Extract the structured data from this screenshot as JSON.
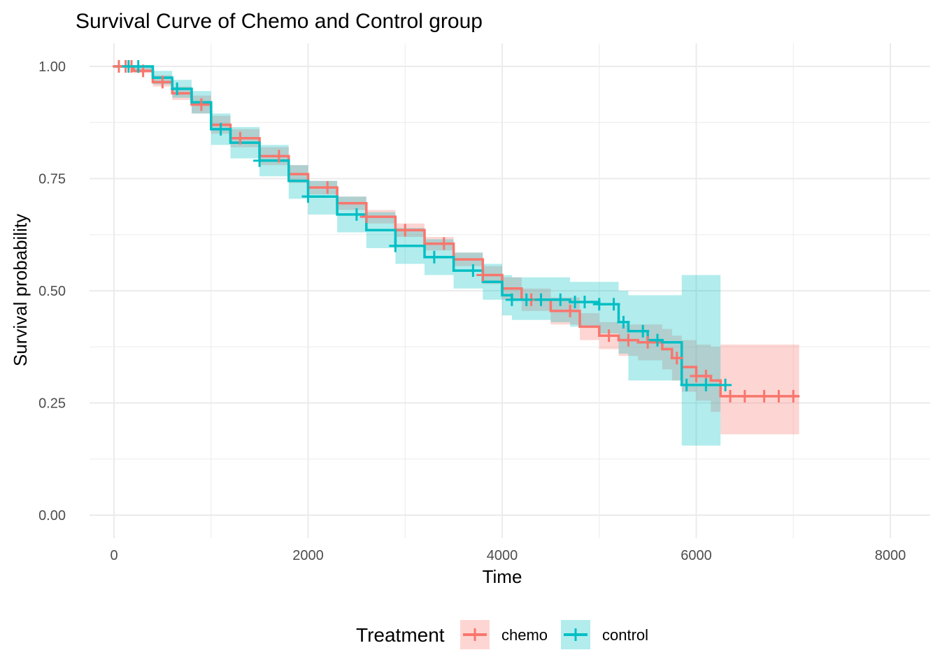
{
  "chart_data": {
    "type": "line",
    "title": "Survival Curve of Chemo and Control group",
    "xlabel": "Time",
    "ylabel": "Survival probability",
    "xlim": [
      -250,
      8300
    ],
    "ylim": [
      -0.04,
      1.04
    ],
    "x_ticks": [
      0,
      2000,
      4000,
      6000,
      8000
    ],
    "x_tick_labels": [
      "0",
      "2000",
      "4000",
      "6000",
      "8000"
    ],
    "y_ticks": [
      0,
      0.25,
      0.5,
      0.75,
      1.0
    ],
    "y_tick_labels": [
      "0.00",
      "0.25",
      "0.50",
      "0.75",
      "1.00"
    ],
    "grid": true,
    "legend": {
      "title": "Treatment",
      "position": "bottom"
    },
    "series": [
      {
        "name": "chemo",
        "color": "#f8766d",
        "fill": "#f8766d",
        "curve": [
          [
            0,
            1.0
          ],
          [
            200,
            0.99
          ],
          [
            400,
            0.965
          ],
          [
            600,
            0.94
          ],
          [
            800,
            0.915
          ],
          [
            1000,
            0.87
          ],
          [
            1200,
            0.84
          ],
          [
            1500,
            0.8
          ],
          [
            1800,
            0.76
          ],
          [
            2000,
            0.73
          ],
          [
            2300,
            0.695
          ],
          [
            2600,
            0.665
          ],
          [
            2900,
            0.635
          ],
          [
            3200,
            0.605
          ],
          [
            3500,
            0.57
          ],
          [
            3800,
            0.535
          ],
          [
            4000,
            0.505
          ],
          [
            4200,
            0.48
          ],
          [
            4500,
            0.455
          ],
          [
            4800,
            0.42
          ],
          [
            5000,
            0.4
          ],
          [
            5200,
            0.39
          ],
          [
            5400,
            0.385
          ],
          [
            5650,
            0.37
          ],
          [
            5750,
            0.35
          ],
          [
            5850,
            0.33
          ],
          [
            6000,
            0.31
          ],
          [
            6150,
            0.3
          ],
          [
            6250,
            0.265
          ],
          [
            7060,
            0.265
          ]
        ],
        "lower": [
          [
            0,
            1.0
          ],
          [
            200,
            0.985
          ],
          [
            400,
            0.955
          ],
          [
            600,
            0.925
          ],
          [
            800,
            0.895
          ],
          [
            1000,
            0.85
          ],
          [
            1200,
            0.82
          ],
          [
            1500,
            0.78
          ],
          [
            1800,
            0.74
          ],
          [
            2000,
            0.715
          ],
          [
            2300,
            0.68
          ],
          [
            2600,
            0.65
          ],
          [
            2900,
            0.62
          ],
          [
            3200,
            0.59
          ],
          [
            3500,
            0.555
          ],
          [
            3800,
            0.515
          ],
          [
            4000,
            0.48
          ],
          [
            4200,
            0.455
          ],
          [
            4500,
            0.425
          ],
          [
            4800,
            0.39
          ],
          [
            5000,
            0.37
          ],
          [
            5200,
            0.355
          ],
          [
            5400,
            0.345
          ],
          [
            5650,
            0.325
          ],
          [
            5750,
            0.3
          ],
          [
            5850,
            0.275
          ],
          [
            6000,
            0.255
          ],
          [
            6150,
            0.23
          ],
          [
            6250,
            0.18
          ],
          [
            7060,
            0.18
          ]
        ],
        "upper": [
          [
            0,
            1.0
          ],
          [
            200,
            1.0
          ],
          [
            400,
            0.98
          ],
          [
            600,
            0.955
          ],
          [
            800,
            0.935
          ],
          [
            1000,
            0.89
          ],
          [
            1200,
            0.86
          ],
          [
            1500,
            0.82
          ],
          [
            1800,
            0.78
          ],
          [
            2000,
            0.745
          ],
          [
            2300,
            0.71
          ],
          [
            2600,
            0.68
          ],
          [
            2900,
            0.65
          ],
          [
            3200,
            0.62
          ],
          [
            3500,
            0.585
          ],
          [
            3800,
            0.555
          ],
          [
            4000,
            0.53
          ],
          [
            4200,
            0.505
          ],
          [
            4500,
            0.485
          ],
          [
            4800,
            0.45
          ],
          [
            5000,
            0.43
          ],
          [
            5200,
            0.425
          ],
          [
            5400,
            0.425
          ],
          [
            5650,
            0.415
          ],
          [
            5750,
            0.4
          ],
          [
            5850,
            0.39
          ],
          [
            6000,
            0.38
          ],
          [
            6150,
            0.375
          ],
          [
            6250,
            0.38
          ],
          [
            7060,
            0.38
          ]
        ],
        "censored": [
          50,
          120,
          180,
          300,
          500,
          900,
          1300,
          1700,
          2200,
          2600,
          3000,
          3400,
          3800,
          4300,
          4700,
          5100,
          5300,
          5500,
          5800,
          6000,
          6100,
          6350,
          6500,
          6700,
          6850,
          7000
        ]
      },
      {
        "name": "control",
        "color": "#00bfc4",
        "fill": "#00bfc4",
        "curve": [
          [
            0,
            1.0
          ],
          [
            200,
            1.0
          ],
          [
            400,
            0.975
          ],
          [
            600,
            0.95
          ],
          [
            800,
            0.92
          ],
          [
            1000,
            0.86
          ],
          [
            1200,
            0.83
          ],
          [
            1500,
            0.79
          ],
          [
            1800,
            0.745
          ],
          [
            2000,
            0.71
          ],
          [
            2300,
            0.67
          ],
          [
            2600,
            0.635
          ],
          [
            2900,
            0.6
          ],
          [
            3200,
            0.575
          ],
          [
            3500,
            0.545
          ],
          [
            3800,
            0.52
          ],
          [
            4000,
            0.49
          ],
          [
            4100,
            0.48
          ],
          [
            4500,
            0.48
          ],
          [
            4700,
            0.475
          ],
          [
            5000,
            0.47
          ],
          [
            5200,
            0.43
          ],
          [
            5300,
            0.41
          ],
          [
            5500,
            0.39
          ],
          [
            5650,
            0.385
          ],
          [
            5800,
            0.385
          ],
          [
            5850,
            0.29
          ],
          [
            6000,
            0.29
          ],
          [
            6250,
            0.29
          ]
        ],
        "lower": [
          [
            0,
            1.0
          ],
          [
            200,
            0.99
          ],
          [
            400,
            0.96
          ],
          [
            600,
            0.93
          ],
          [
            800,
            0.895
          ],
          [
            1000,
            0.825
          ],
          [
            1200,
            0.795
          ],
          [
            1500,
            0.755
          ],
          [
            1800,
            0.705
          ],
          [
            2000,
            0.67
          ],
          [
            2300,
            0.63
          ],
          [
            2600,
            0.595
          ],
          [
            2900,
            0.56
          ],
          [
            3200,
            0.535
          ],
          [
            3500,
            0.505
          ],
          [
            3800,
            0.48
          ],
          [
            4000,
            0.445
          ],
          [
            4100,
            0.435
          ],
          [
            4500,
            0.43
          ],
          [
            4700,
            0.42
          ],
          [
            5000,
            0.405
          ],
          [
            5200,
            0.36
          ],
          [
            5300,
            0.3
          ],
          [
            5500,
            0.3
          ],
          [
            5650,
            0.3
          ],
          [
            5800,
            0.3
          ],
          [
            5850,
            0.155
          ],
          [
            6000,
            0.155
          ],
          [
            6250,
            0.155
          ]
        ],
        "upper": [
          [
            0,
            1.0
          ],
          [
            200,
            1.0
          ],
          [
            400,
            0.99
          ],
          [
            600,
            0.97
          ],
          [
            800,
            0.945
          ],
          [
            1000,
            0.895
          ],
          [
            1200,
            0.865
          ],
          [
            1500,
            0.825
          ],
          [
            1800,
            0.78
          ],
          [
            2000,
            0.745
          ],
          [
            2300,
            0.71
          ],
          [
            2600,
            0.675
          ],
          [
            2900,
            0.64
          ],
          [
            3200,
            0.615
          ],
          [
            3500,
            0.585
          ],
          [
            3800,
            0.56
          ],
          [
            4000,
            0.535
          ],
          [
            4100,
            0.53
          ],
          [
            4500,
            0.53
          ],
          [
            4700,
            0.52
          ],
          [
            5000,
            0.52
          ],
          [
            5200,
            0.5
          ],
          [
            5300,
            0.49
          ],
          [
            5500,
            0.49
          ],
          [
            5650,
            0.49
          ],
          [
            5800,
            0.49
          ],
          [
            5850,
            0.535
          ],
          [
            6000,
            0.535
          ],
          [
            6250,
            0.535
          ]
        ],
        "censored": [
          150,
          250,
          650,
          1100,
          1500,
          2000,
          2500,
          2900,
          3300,
          3700,
          4100,
          4250,
          4400,
          4600,
          4750,
          4850,
          5000,
          5150,
          5250,
          5450,
          5600,
          5900,
          6100,
          6300
        ]
      }
    ]
  }
}
